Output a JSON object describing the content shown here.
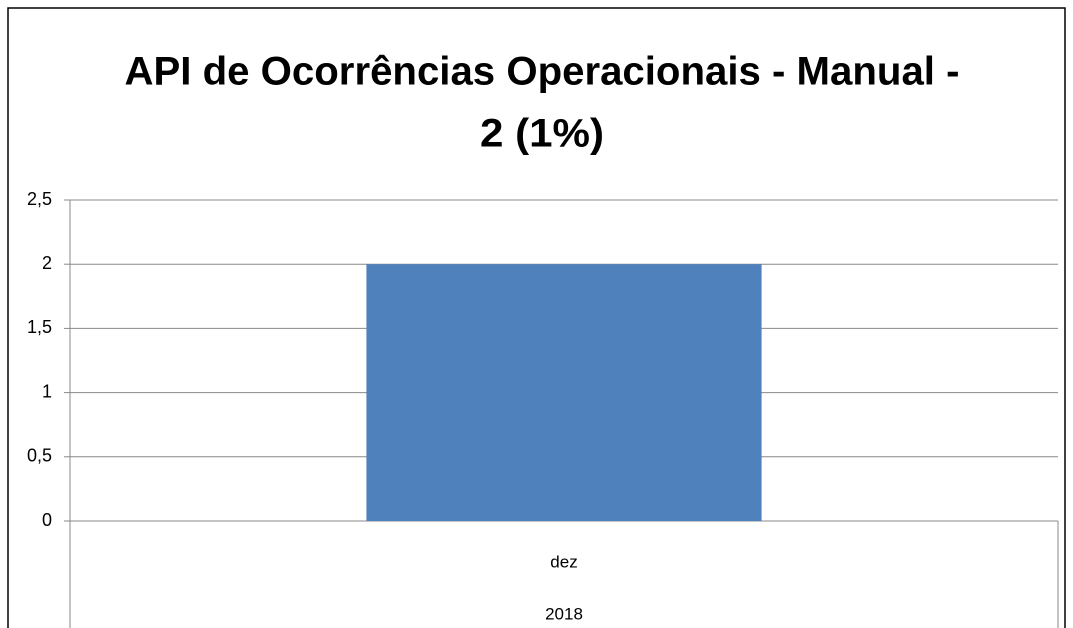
{
  "chart_data": {
    "type": "bar",
    "title": [
      "API de Ocorrências Operacionais - Manual -",
      "2 (1%)"
    ],
    "categories": [
      "dez"
    ],
    "category_group": "2018",
    "values": [
      2
    ],
    "color": "#4f81bd",
    "ylim": [
      0,
      2.5
    ],
    "yticks": [
      0,
      {
        "value": 0.5,
        "label": "0,5"
      },
      1,
      {
        "value": 1.5,
        "label": "1,5"
      },
      2,
      {
        "value": 2.5,
        "label": "2,5"
      }
    ],
    "grid": true
  }
}
